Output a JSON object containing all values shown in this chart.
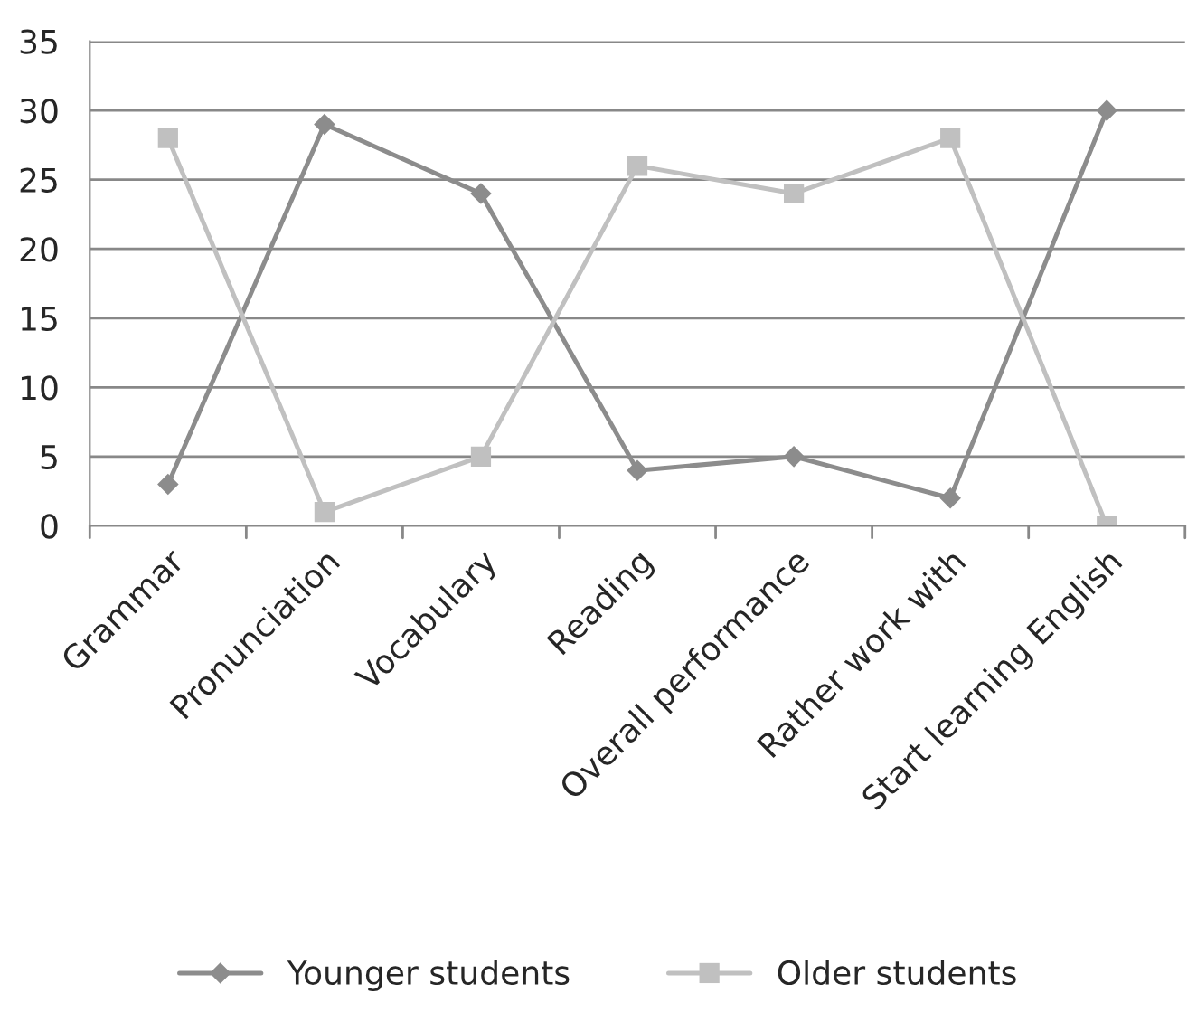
{
  "chart_data": {
    "type": "line",
    "categories": [
      "Grammar",
      "Pronunciation",
      "Vocabulary",
      "Reading",
      "Overall performance",
      "Rather work with",
      "Start learning English"
    ],
    "series": [
      {
        "name": "Younger students",
        "color": "#8c8c8c",
        "marker": "diamond",
        "values": [
          3,
          29,
          24,
          4,
          5,
          2,
          30
        ]
      },
      {
        "name": "Older students",
        "color": "#c0c0c0",
        "marker": "square",
        "values": [
          28,
          1,
          5,
          26,
          24,
          28,
          0
        ]
      }
    ],
    "ylim": [
      0,
      35
    ],
    "yticks": [
      0,
      5,
      10,
      15,
      20,
      25,
      30,
      35
    ],
    "grid": "y",
    "legend": "bottom",
    "line_style": "solid"
  }
}
